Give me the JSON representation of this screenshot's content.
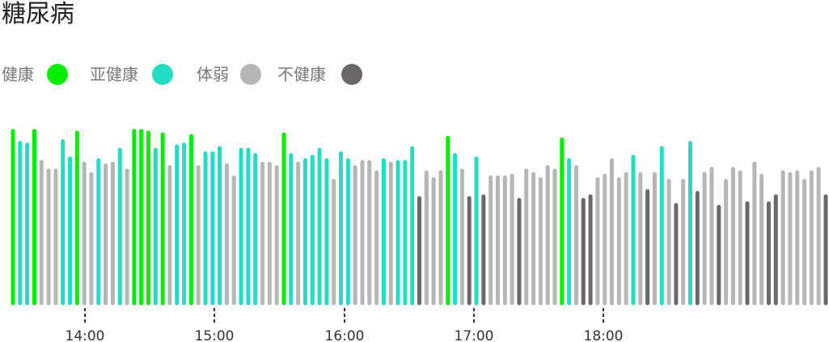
{
  "chart_data": {
    "type": "bar",
    "title": "糖尿病",
    "legend_placement": "top-left",
    "x_axis": {
      "type": "time",
      "ticks": [
        "14:00",
        "15:00",
        "16:00",
        "17:00",
        "18:00"
      ]
    },
    "ylim": [
      0,
      100
    ],
    "grid": false,
    "categories": [
      {
        "key": "healthy",
        "label": "健康",
        "color": "#00ee00"
      },
      {
        "key": "subhealthy",
        "label": "亚健康",
        "color": "#22ddc4"
      },
      {
        "key": "weak",
        "label": "体弱",
        "color": "#b6b6b6"
      },
      {
        "key": "unhealthy",
        "label": "不健康",
        "color": "#6d6868"
      }
    ],
    "values": [
      [
        100,
        "healthy"
      ],
      [
        93,
        "subhealthy"
      ],
      [
        92,
        "subhealthy"
      ],
      [
        100,
        "healthy"
      ],
      [
        82,
        "weak"
      ],
      [
        77,
        "weak"
      ],
      [
        77,
        "weak"
      ],
      [
        94,
        "subhealthy"
      ],
      [
        84,
        "subhealthy"
      ],
      [
        99,
        "healthy"
      ],
      [
        81,
        "weak"
      ],
      [
        75,
        "weak"
      ],
      [
        83,
        "subhealthy"
      ],
      [
        80,
        "weak"
      ],
      [
        81,
        "weak"
      ],
      [
        89,
        "subhealthy"
      ],
      [
        77,
        "weak"
      ],
      [
        100,
        "healthy"
      ],
      [
        100,
        "healthy"
      ],
      [
        99,
        "healthy"
      ],
      [
        89,
        "subhealthy"
      ],
      [
        98,
        "healthy"
      ],
      [
        79,
        "weak"
      ],
      [
        91,
        "subhealthy"
      ],
      [
        92,
        "subhealthy"
      ],
      [
        97,
        "healthy"
      ],
      [
        79,
        "weak"
      ],
      [
        87,
        "subhealthy"
      ],
      [
        87,
        "subhealthy"
      ],
      [
        90,
        "subhealthy"
      ],
      [
        80,
        "weak"
      ],
      [
        73,
        "weak"
      ],
      [
        89,
        "subhealthy"
      ],
      [
        89,
        "subhealthy"
      ],
      [
        86,
        "subhealthy"
      ],
      [
        81,
        "weak"
      ],
      [
        81,
        "weak"
      ],
      [
        79,
        "weak"
      ],
      [
        98,
        "healthy"
      ],
      [
        86,
        "subhealthy"
      ],
      [
        81,
        "weak"
      ],
      [
        83,
        "subhealthy"
      ],
      [
        85,
        "subhealthy"
      ],
      [
        89,
        "subhealthy"
      ],
      [
        83,
        "subhealthy"
      ],
      [
        71,
        "weak"
      ],
      [
        87,
        "subhealthy"
      ],
      [
        83,
        "subhealthy"
      ],
      [
        79,
        "weak"
      ],
      [
        82,
        "weak"
      ],
      [
        82,
        "weak"
      ],
      [
        76,
        "weak"
      ],
      [
        83,
        "subhealthy"
      ],
      [
        81,
        "weak"
      ],
      [
        82,
        "subhealthy"
      ],
      [
        82,
        "subhealthy"
      ],
      [
        90,
        "subhealthy"
      ],
      [
        61,
        "unhealthy"
      ],
      [
        76,
        "weak"
      ],
      [
        72,
        "weak"
      ],
      [
        76,
        "weak"
      ],
      [
        96,
        "healthy"
      ],
      [
        86,
        "subhealthy"
      ],
      [
        77,
        "weak"
      ],
      [
        61,
        "unhealthy"
      ],
      [
        84,
        "subhealthy"
      ],
      [
        62,
        "unhealthy"
      ],
      [
        73,
        "weak"
      ],
      [
        73,
        "weak"
      ],
      [
        73,
        "weak"
      ],
      [
        74,
        "weak"
      ],
      [
        60,
        "unhealthy"
      ],
      [
        77,
        "weak"
      ],
      [
        75,
        "weak"
      ],
      [
        72,
        "weak"
      ],
      [
        79,
        "weak"
      ],
      [
        77,
        "weak"
      ],
      [
        95,
        "healthy"
      ],
      [
        83,
        "subhealthy"
      ],
      [
        79,
        "weak"
      ],
      [
        60,
        "unhealthy"
      ],
      [
        62,
        "unhealthy"
      ],
      [
        72,
        "weak"
      ],
      [
        74,
        "weak"
      ],
      [
        83,
        "weak"
      ],
      [
        72,
        "weak"
      ],
      [
        75,
        "weak"
      ],
      [
        85,
        "subhealthy"
      ],
      [
        75,
        "weak"
      ],
      [
        65,
        "unhealthy"
      ],
      [
        75,
        "weak"
      ],
      [
        90,
        "subhealthy"
      ],
      [
        71,
        "weak"
      ],
      [
        57,
        "unhealthy"
      ],
      [
        71,
        "weak"
      ],
      [
        93,
        "subhealthy"
      ],
      [
        64,
        "unhealthy"
      ],
      [
        75,
        "weak"
      ],
      [
        78,
        "weak"
      ],
      [
        56,
        "unhealthy"
      ],
      [
        71,
        "weak"
      ],
      [
        78,
        "weak"
      ],
      [
        76,
        "weak"
      ],
      [
        58,
        "unhealthy"
      ],
      [
        81,
        "weak"
      ],
      [
        74,
        "weak"
      ],
      [
        58,
        "unhealthy"
      ],
      [
        62,
        "unhealthy"
      ],
      [
        76,
        "weak"
      ],
      [
        75,
        "weak"
      ],
      [
        76,
        "weak"
      ],
      [
        71,
        "weak"
      ],
      [
        76,
        "weak"
      ],
      [
        78,
        "weak"
      ],
      [
        62,
        "unhealthy"
      ]
    ]
  }
}
